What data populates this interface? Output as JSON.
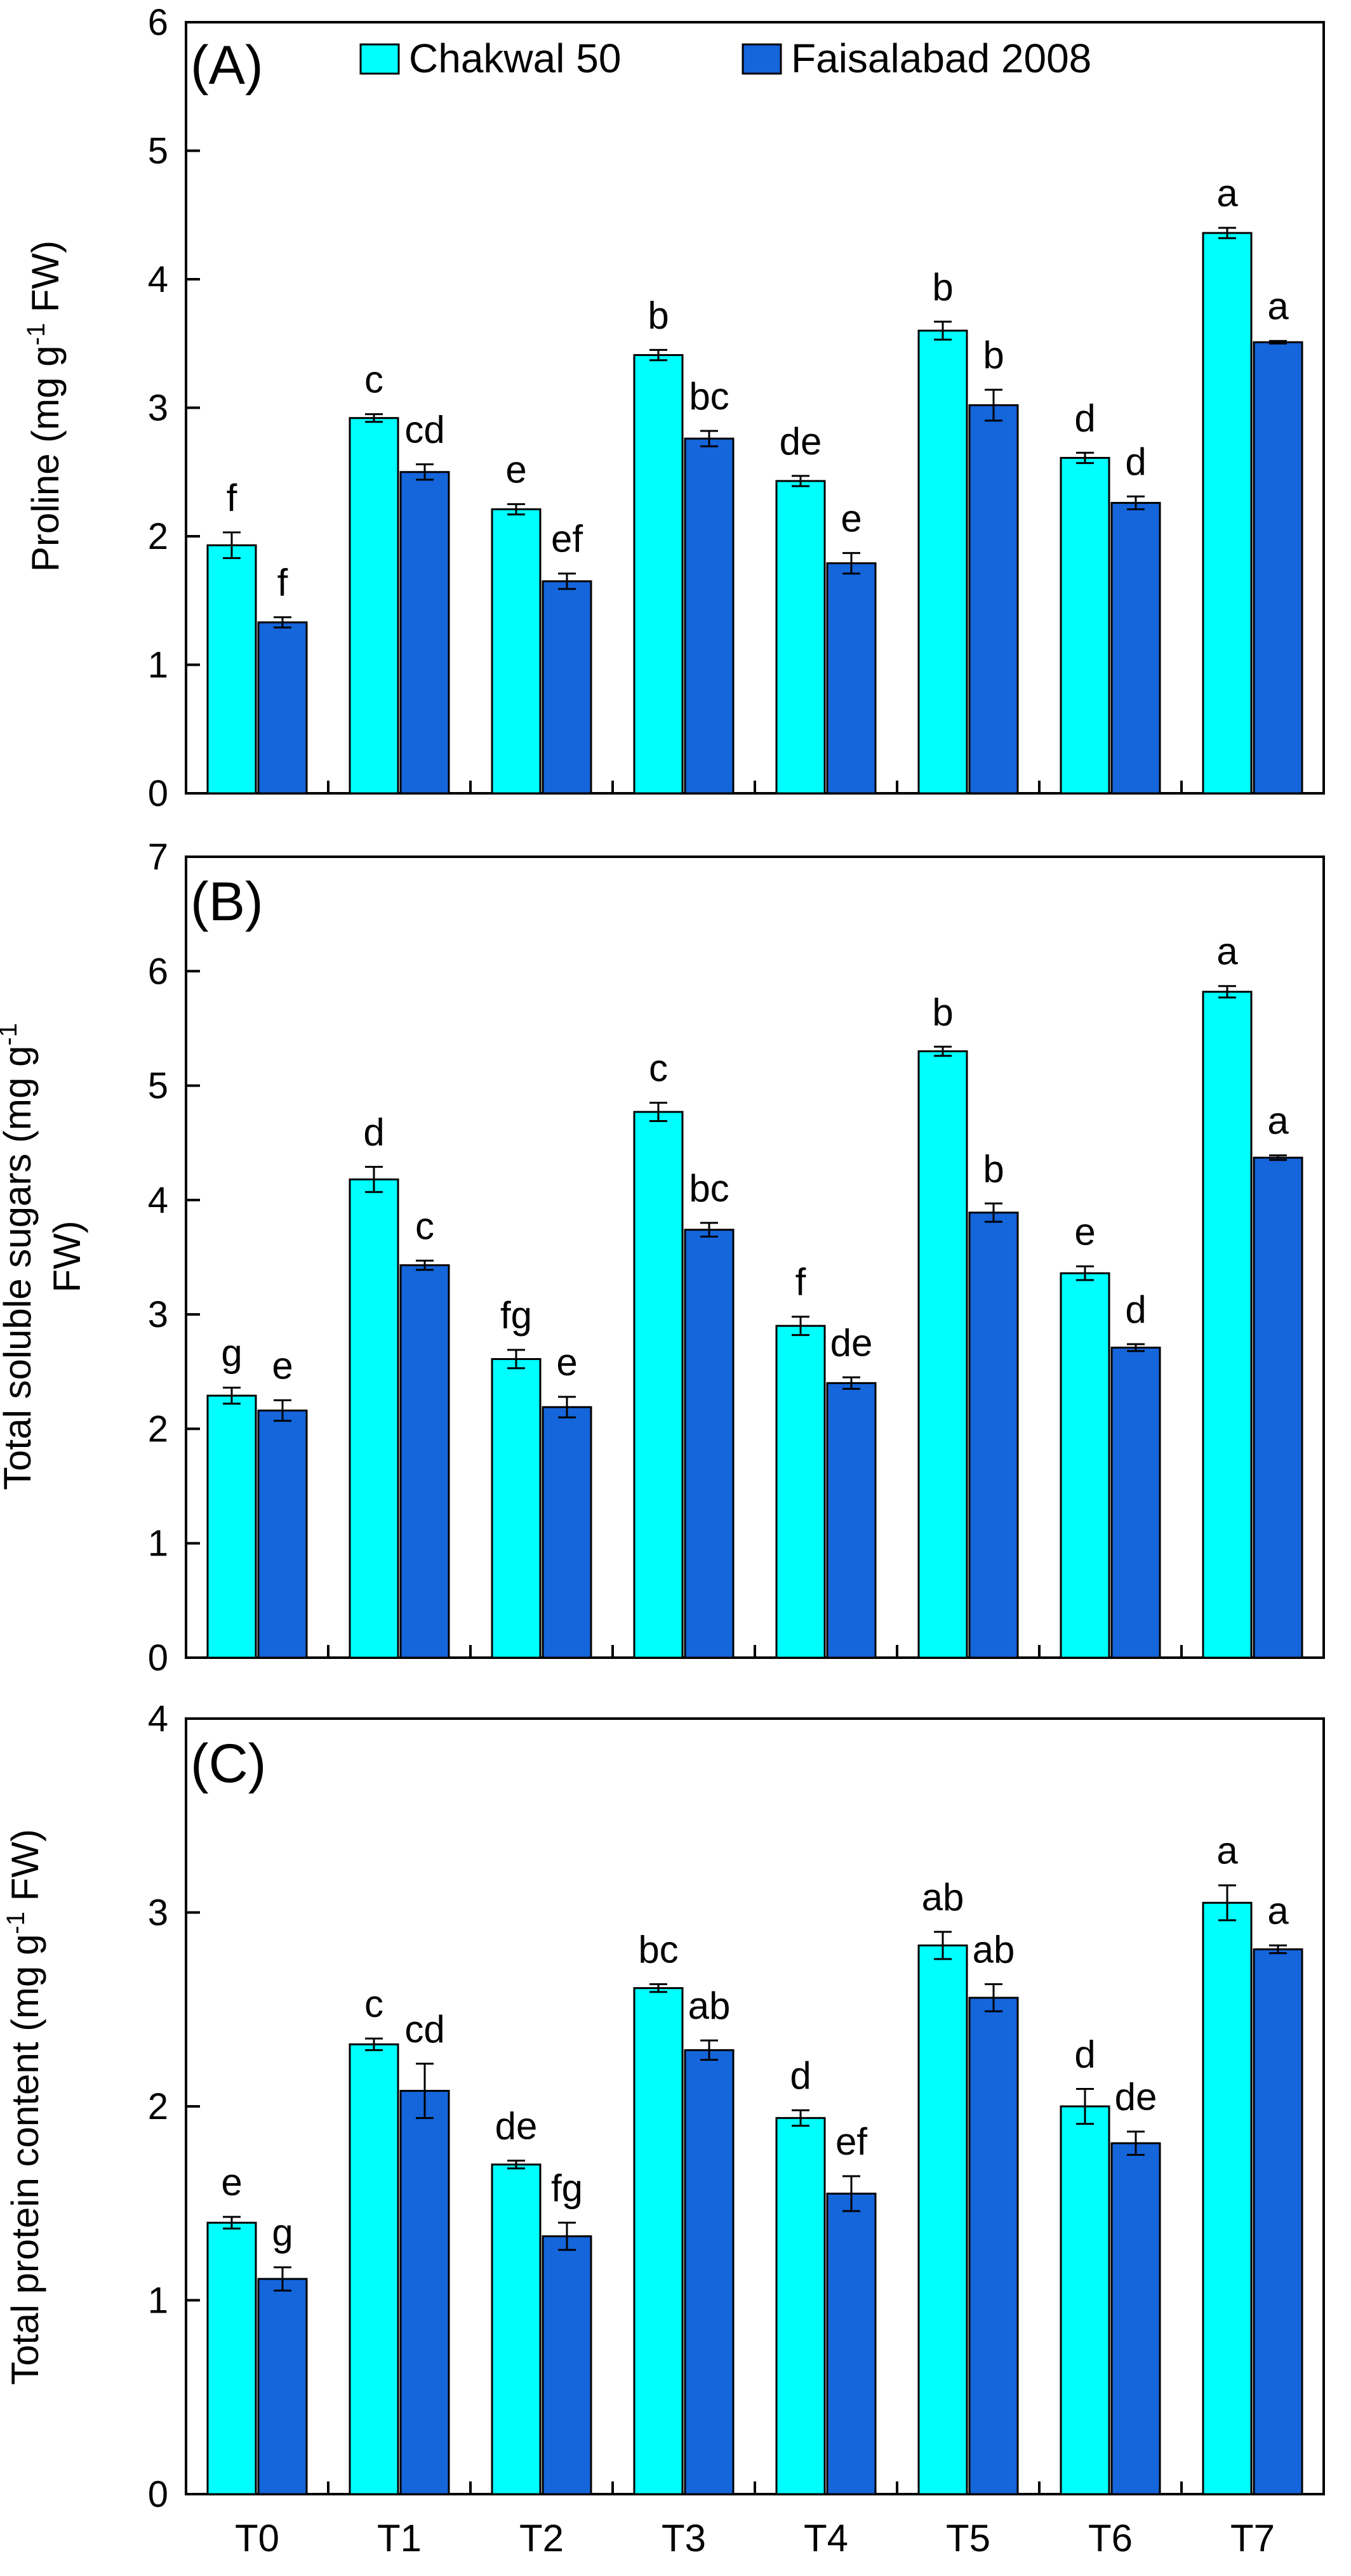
{
  "legend": {
    "series_a": "Chakwal 50",
    "series_b": "Faisalabad 2008"
  },
  "colors": {
    "chakwal": "#00FFFF",
    "faisalabad": "#1565DB",
    "axis": "#000000"
  },
  "chart_data": [
    {
      "type": "bar",
      "panel": "(A)",
      "categories": [
        "T0",
        "T1",
        "T2",
        "T3",
        "T4",
        "T5",
        "T6",
        "T7"
      ],
      "ylabel_parts": [
        "Proline  (mg g",
        "-1",
        " FW)"
      ],
      "ylim": [
        0,
        6
      ],
      "yticks": [
        0,
        1,
        2,
        3,
        4,
        5,
        6
      ],
      "legend": "top",
      "series": [
        {
          "name": "Chakwal 50",
          "values": [
            1.93,
            2.92,
            2.21,
            3.41,
            2.43,
            3.6,
            2.61,
            4.36
          ],
          "errors": [
            0.1,
            0.03,
            0.04,
            0.04,
            0.04,
            0.07,
            0.04,
            0.04
          ],
          "letters": [
            "f",
            "c",
            "e",
            "b",
            "de",
            "b",
            "d",
            "a"
          ]
        },
        {
          "name": "Faisalabad 2008",
          "values": [
            1.33,
            2.5,
            1.65,
            2.76,
            1.79,
            3.02,
            2.26,
            3.51
          ],
          "errors": [
            0.04,
            0.06,
            0.06,
            0.06,
            0.08,
            0.12,
            0.05,
            0.01
          ],
          "letters": [
            "f",
            "cd",
            "ef",
            "bc",
            "e",
            "b",
            "d",
            "a"
          ]
        }
      ]
    },
    {
      "type": "bar",
      "panel": "(B)",
      "categories": [
        "T0",
        "T1",
        "T2",
        "T3",
        "T4",
        "T5",
        "T6",
        "T7"
      ],
      "ylabel_parts": [
        "Total soluble sugars (mg g",
        "-1",
        "",
        "FW)"
      ],
      "ylim": [
        0,
        7
      ],
      "yticks": [
        0,
        1,
        2,
        3,
        4,
        5,
        6,
        7
      ],
      "series": [
        {
          "name": "Chakwal 50",
          "values": [
            2.29,
            4.18,
            2.61,
            4.77,
            2.9,
            5.3,
            3.36,
            5.82
          ],
          "errors": [
            0.07,
            0.11,
            0.08,
            0.08,
            0.08,
            0.04,
            0.06,
            0.05
          ],
          "letters": [
            "g",
            "d",
            "fg",
            "c",
            "f",
            "b",
            "e",
            "a"
          ]
        },
        {
          "name": "Faisalabad 2008",
          "values": [
            2.16,
            3.43,
            2.19,
            3.74,
            2.4,
            3.89,
            2.71,
            4.37
          ],
          "errors": [
            0.09,
            0.04,
            0.09,
            0.06,
            0.05,
            0.08,
            0.03,
            0.02
          ],
          "letters": [
            "e",
            "c",
            "e",
            "bc",
            "de",
            "b",
            "d",
            "a"
          ]
        }
      ]
    },
    {
      "type": "bar",
      "panel": "(C)",
      "categories": [
        "T0",
        "T1",
        "T2",
        "T3",
        "T4",
        "T5",
        "T6",
        "T7"
      ],
      "ylabel_parts": [
        "Total protein content (mg g",
        "-1",
        " FW)"
      ],
      "ylim": [
        0,
        4
      ],
      "yticks": [
        0,
        1,
        2,
        3,
        4
      ],
      "series": [
        {
          "name": "Chakwal 50",
          "values": [
            1.4,
            2.32,
            1.7,
            2.61,
            1.94,
            2.83,
            2.0,
            3.05
          ],
          "errors": [
            0.03,
            0.03,
            0.02,
            0.02,
            0.04,
            0.07,
            0.09,
            0.09
          ],
          "letters": [
            "e",
            "c",
            "de",
            "bc",
            "d",
            "ab",
            "d",
            "a"
          ]
        },
        {
          "name": "Faisalabad 2008",
          "values": [
            1.11,
            2.08,
            1.33,
            2.29,
            1.55,
            2.56,
            1.81,
            2.81
          ],
          "errors": [
            0.06,
            0.14,
            0.07,
            0.05,
            0.09,
            0.07,
            0.06,
            0.02
          ],
          "letters": [
            "g",
            "cd",
            "fg",
            "ab",
            "ef",
            "ab",
            "de",
            "a"
          ]
        }
      ]
    }
  ]
}
